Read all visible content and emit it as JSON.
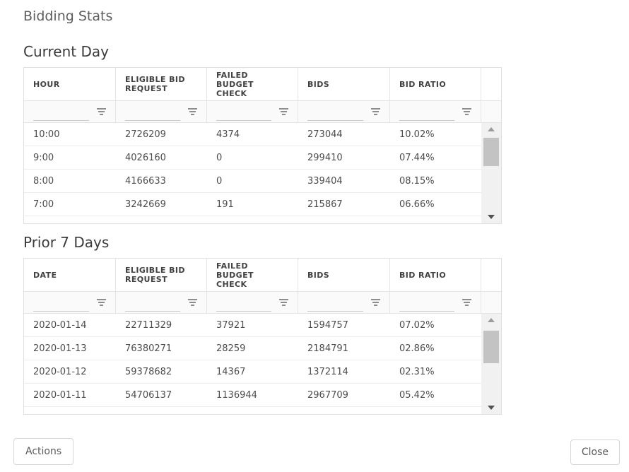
{
  "title": "Bidding Stats",
  "sections": [
    {
      "title": "Current Day",
      "columns": [
        {
          "label": "HOUR"
        },
        {
          "label": "ELIGIBLE BID\nREQUEST"
        },
        {
          "label": "FAILED\nBUDGET\nCHECK"
        },
        {
          "label": "BIDS"
        },
        {
          "label": "BID RATIO"
        }
      ],
      "filters": [
        {
          "value": ""
        },
        {
          "value": ""
        },
        {
          "value": ""
        },
        {
          "value": ""
        },
        {
          "value": ""
        }
      ],
      "rows": [
        [
          "10:00",
          "2726209",
          "4374",
          "273044",
          "10.02%"
        ],
        [
          "9:00",
          "4026160",
          "0",
          "299410",
          "07.44%"
        ],
        [
          "8:00",
          "4166633",
          "0",
          "339404",
          "08.15%"
        ],
        [
          "7:00",
          "3242669",
          "191",
          "215867",
          "06.66%"
        ]
      ]
    },
    {
      "title": "Prior 7 Days",
      "columns": [
        {
          "label": "DATE"
        },
        {
          "label": "ELIGIBLE BID\nREQUEST"
        },
        {
          "label": "FAILED\nBUDGET\nCHECK"
        },
        {
          "label": "BIDS"
        },
        {
          "label": "BID RATIO"
        }
      ],
      "filters": [
        {
          "value": ""
        },
        {
          "value": ""
        },
        {
          "value": ""
        },
        {
          "value": ""
        },
        {
          "value": ""
        }
      ],
      "rows": [
        [
          "2020-01-14",
          "22711329",
          "37921",
          "1594757",
          "07.02%"
        ],
        [
          "2020-01-13",
          "76380271",
          "28259",
          "2184791",
          "02.86%"
        ],
        [
          "2020-01-12",
          "59378682",
          "14367",
          "1372114",
          "02.31%"
        ],
        [
          "2020-01-11",
          "54706137",
          "1136944",
          "2967709",
          "05.42%"
        ]
      ]
    }
  ],
  "footer": {
    "actions_label": "Actions",
    "close_label": "Close"
  },
  "icons": {
    "filter": "filter-funnel-icon",
    "scroll_up": "scroll-up-arrow-icon",
    "scroll_down": "scroll-down-arrow-icon"
  },
  "colors": {
    "grid_border": "#e0e0e0",
    "filter_row_bg": "#fafafa",
    "scroll_track": "#f1f1f1",
    "scroll_thumb": "#c3c3c3",
    "header_text": "#424242",
    "cell_text": "#4c4c4c",
    "title_text": "#5e5e5e"
  }
}
